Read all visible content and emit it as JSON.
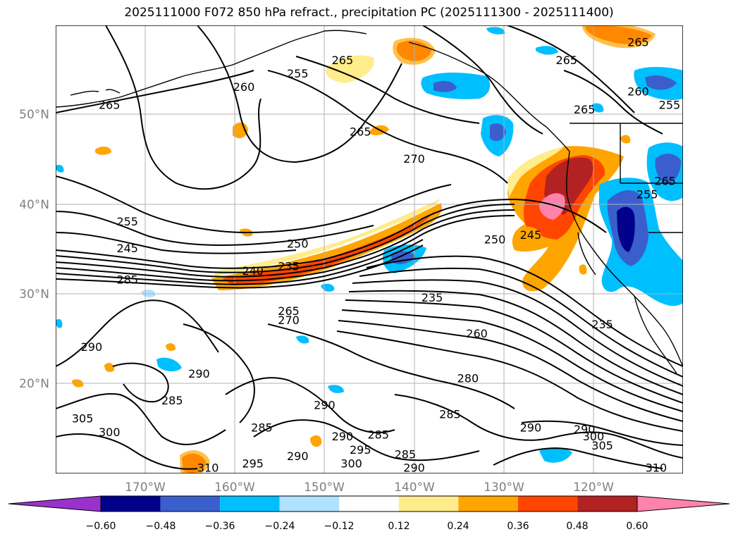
{
  "title": "2025111000 F072 850 hPa refract., precipitation PC (2025111300 - 2025111400)",
  "map": {
    "projection": "cylindrical",
    "lon_range": [
      -180,
      -110
    ],
    "lat_range": [
      10,
      60
    ],
    "lat_labels": [
      "50°N",
      "40°N",
      "30°N",
      "20°N"
    ],
    "lon_labels": [
      "170°W",
      "160°W",
      "150°W",
      "140°W",
      "130°W",
      "120°W"
    ],
    "gridlines": true
  },
  "contour_labels": [
    {
      "text": "265",
      "lon": -148,
      "lat": 56
    },
    {
      "text": "260",
      "lon": -159,
      "lat": 53
    },
    {
      "text": "265",
      "lon": -174,
      "lat": 51
    },
    {
      "text": "255",
      "lon": -153,
      "lat": 54.5
    },
    {
      "text": "265",
      "lon": -146,
      "lat": 48
    },
    {
      "text": "270",
      "lon": -140,
      "lat": 45
    },
    {
      "text": "255",
      "lon": -172,
      "lat": 38
    },
    {
      "text": "245",
      "lon": -172,
      "lat": 35
    },
    {
      "text": "285",
      "lon": -172,
      "lat": 31.5
    },
    {
      "text": "250",
      "lon": -153,
      "lat": 35.5
    },
    {
      "text": "240",
      "lon": -158,
      "lat": 32.5
    },
    {
      "text": "235",
      "lon": -154,
      "lat": 33
    },
    {
      "text": "250",
      "lon": -131,
      "lat": 36
    },
    {
      "text": "245",
      "lon": -127,
      "lat": 36.5
    },
    {
      "text": "235",
      "lon": -138,
      "lat": 29.5
    },
    {
      "text": "265",
      "lon": -154,
      "lat": 28
    },
    {
      "text": "270",
      "lon": -154,
      "lat": 27
    },
    {
      "text": "260",
      "lon": -133,
      "lat": 25.5
    },
    {
      "text": "235",
      "lon": -119,
      "lat": 26.5
    },
    {
      "text": "290",
      "lon": -176,
      "lat": 24
    },
    {
      "text": "280",
      "lon": -134,
      "lat": 20.5
    },
    {
      "text": "290",
      "lon": -164,
      "lat": 21
    },
    {
      "text": "285",
      "lon": -167,
      "lat": 18
    },
    {
      "text": "290",
      "lon": -150,
      "lat": 17.5
    },
    {
      "text": "285",
      "lon": -136,
      "lat": 16.5
    },
    {
      "text": "285",
      "lon": -157,
      "lat": 15
    },
    {
      "text": "290",
      "lon": -148,
      "lat": 14
    },
    {
      "text": "285",
      "lon": -144,
      "lat": 14.2
    },
    {
      "text": "295",
      "lon": -146,
      "lat": 12.5
    },
    {
      "text": "290",
      "lon": -153,
      "lat": 11.8
    },
    {
      "text": "300",
      "lon": -147,
      "lat": 11
    },
    {
      "text": "295",
      "lon": -158,
      "lat": 11
    },
    {
      "text": "285",
      "lon": -141,
      "lat": 12
    },
    {
      "text": "290",
      "lon": -140,
      "lat": 10.5
    },
    {
      "text": "290",
      "lon": -127,
      "lat": 15
    },
    {
      "text": "290",
      "lon": -121,
      "lat": 14.8
    },
    {
      "text": "300",
      "lon": -120,
      "lat": 14
    },
    {
      "text": "305",
      "lon": -119,
      "lat": 13
    },
    {
      "text": "305",
      "lon": -177,
      "lat": 16
    },
    {
      "text": "300",
      "lon": -174,
      "lat": 14.5
    },
    {
      "text": "310",
      "lon": -163,
      "lat": 10.5
    },
    {
      "text": "310",
      "lon": -113,
      "lat": 10.5
    },
    {
      "text": "265",
      "lon": -115,
      "lat": 58
    },
    {
      "text": "265",
      "lon": -123,
      "lat": 56
    },
    {
      "text": "260",
      "lon": -115,
      "lat": 52.5
    },
    {
      "text": "265",
      "lon": -121,
      "lat": 50.5
    },
    {
      "text": "255",
      "lon": -111.5,
      "lat": 51
    },
    {
      "text": "255",
      "lon": -114,
      "lat": 41
    },
    {
      "text": "265",
      "lon": -112,
      "lat": 42.5
    }
  ],
  "precip_levels": {
    "values": [
      -0.6,
      -0.48,
      -0.36,
      -0.24,
      -0.12,
      0.12,
      0.24,
      0.36,
      0.48,
      0.6
    ],
    "colors": [
      "#9932CC",
      "#00008B",
      "#3A5FCD",
      "#00BFFF",
      "#B0E2FF",
      "#FFFFFF",
      "#FFEC8B",
      "#FFA500",
      "#FF4500",
      "#B22222",
      "#FF82AB"
    ]
  },
  "colorbar": {
    "tick_labels": [
      "−0.60",
      "−0.48",
      "−0.36",
      "−0.24",
      "−0.12",
      "0.12",
      "0.24",
      "0.36",
      "0.48",
      "0.60"
    ]
  }
}
